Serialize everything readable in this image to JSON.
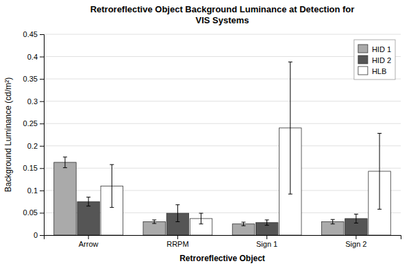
{
  "chart_data": {
    "type": "bar",
    "title": "Retroreflective Object Background Luminance at Detection for\nVIS Systems",
    "xlabel": "Retroreflective Object",
    "ylabel": "Background Luminance (cd/m²)",
    "categories": [
      "Arrow",
      "RRPM",
      "Sign 1",
      "Sign 2"
    ],
    "series": [
      {
        "name": "HID 1",
        "color": "#aaaaaa",
        "values": [
          0.163,
          0.03,
          0.025,
          0.03
        ],
        "errors": [
          0.012,
          0.004,
          0.004,
          0.005
        ]
      },
      {
        "name": "HID 2",
        "color": "#555555",
        "values": [
          0.075,
          0.049,
          0.028,
          0.037
        ],
        "errors": [
          0.01,
          0.019,
          0.006,
          0.01
        ]
      },
      {
        "name": "HLB",
        "color": "#ffffff",
        "values": [
          0.11,
          0.037,
          0.24,
          0.143
        ],
        "errors": [
          0.048,
          0.012,
          0.148,
          0.085
        ]
      }
    ],
    "ylim": [
      0,
      0.45
    ],
    "yticks": [
      0,
      0.05,
      0.1,
      0.15,
      0.2,
      0.25,
      0.3,
      0.35,
      0.4,
      0.45
    ],
    "grid": true,
    "legend": "upper right"
  }
}
